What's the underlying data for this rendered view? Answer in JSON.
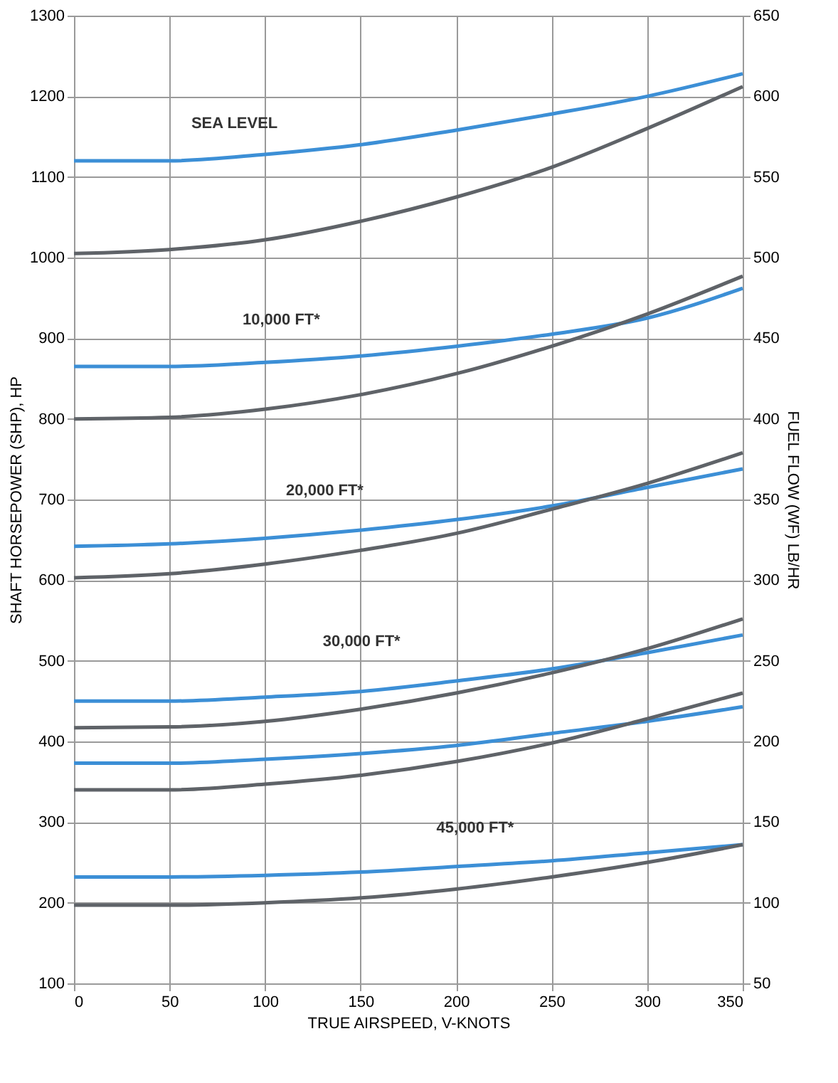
{
  "chart_data": {
    "type": "line",
    "xlabel": "TRUE AIRSPEED, V-KNOTS",
    "ylabel": "SHAFT HORSEPOWER (SHP), HP",
    "y2label": "FUEL FLOW (WF) LB/HR",
    "x": [
      0,
      50,
      100,
      150,
      200,
      250,
      300,
      350
    ],
    "xlim": [
      0,
      350
    ],
    "xticks": [
      0,
      50,
      100,
      150,
      200,
      250,
      300,
      350
    ],
    "ylim": [
      100,
      1300
    ],
    "yticks": [
      100,
      200,
      300,
      400,
      500,
      600,
      700,
      800,
      900,
      1000,
      1100,
      1200,
      1300
    ],
    "y2lim": [
      50,
      650
    ],
    "y2ticks": [
      50,
      100,
      150,
      200,
      250,
      300,
      350,
      400,
      450,
      500,
      550,
      600,
      650
    ],
    "grid": true,
    "legend": false,
    "marker": "none",
    "line_style": "solid",
    "series": [
      {
        "color": "#3c8fd6",
        "values": [
          1120,
          1120,
          1128,
          1140,
          1158,
          1178,
          1200,
          1228
        ]
      },
      {
        "color": "#5f6368",
        "values": [
          1005,
          1010,
          1022,
          1045,
          1075,
          1112,
          1160,
          1212
        ]
      },
      {
        "color": "#3c8fd6",
        "values": [
          865,
          865,
          870,
          878,
          890,
          905,
          925,
          962
        ]
      },
      {
        "color": "#5f6368",
        "values": [
          800,
          802,
          812,
          830,
          856,
          890,
          930,
          977
        ]
      },
      {
        "color": "#3c8fd6",
        "values": [
          642,
          645,
          652,
          662,
          675,
          692,
          715,
          738
        ]
      },
      {
        "color": "#5f6368",
        "values": [
          603,
          608,
          620,
          637,
          658,
          688,
          720,
          758
        ]
      },
      {
        "color": "#3c8fd6",
        "values": [
          450,
          450,
          455,
          462,
          475,
          490,
          510,
          532
        ]
      },
      {
        "color": "#5f6368",
        "values": [
          417,
          418,
          425,
          440,
          460,
          485,
          515,
          552
        ]
      },
      {
        "color": "#3c8fd6",
        "values": [
          373,
          373,
          378,
          385,
          395,
          410,
          425,
          443
        ]
      },
      {
        "color": "#5f6368",
        "values": [
          340,
          340,
          347,
          358,
          375,
          398,
          428,
          460
        ]
      },
      {
        "color": "#3c8fd6",
        "values": [
          232,
          232,
          234,
          238,
          245,
          252,
          262,
          272
        ]
      },
      {
        "color": "#5f6368",
        "values": [
          197,
          197,
          200,
          206,
          217,
          232,
          250,
          272
        ]
      }
    ],
    "annotations": [
      "SEA LEVEL",
      "10,000 FT*",
      "20,000 FT*",
      "30,000 FT*",
      "45,000 FT*"
    ]
  }
}
